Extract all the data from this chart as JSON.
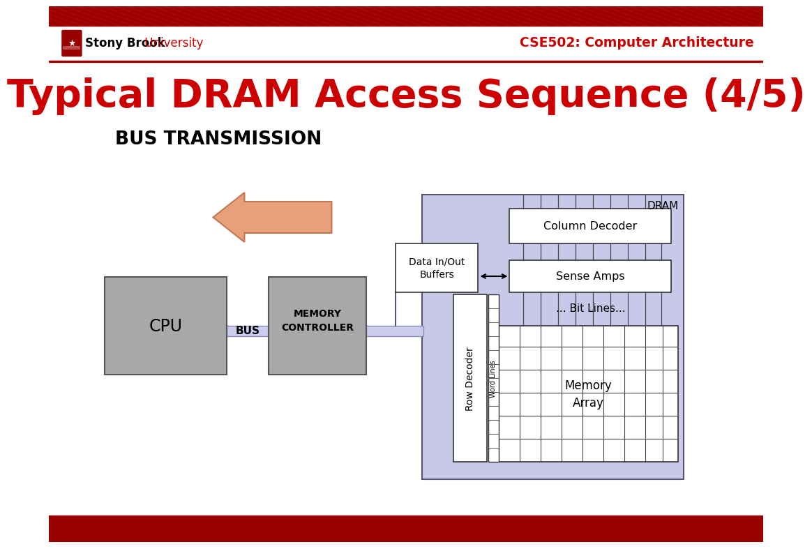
{
  "title": "Typical DRAM Access Sequence (4/5)",
  "subtitle": "BUS TRANSMISSION",
  "header_text": "CSE502: Computer Architecture",
  "title_color": "#CC0000",
  "header_color": "#CC0000",
  "bg_color": "#FFFFFF",
  "top_bar_color": "#9B0000",
  "bottom_bar_color": "#9B0000",
  "logo_color": "#9B0000",
  "dram_bg": "#C8C8E8",
  "box_gray": "#A8A8A8",
  "box_white": "#FFFFFF",
  "bus_color": "#CCCCEE",
  "arrow_color": "#E8A07A",
  "arrow_outline": "#C07850"
}
